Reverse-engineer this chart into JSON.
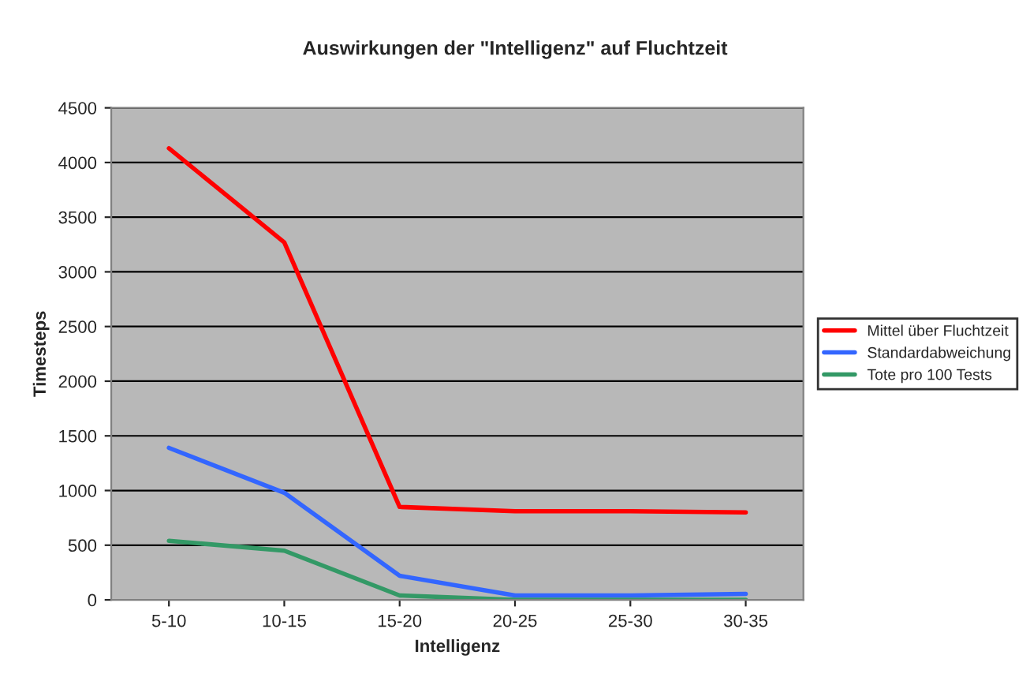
{
  "chart_data": {
    "type": "line",
    "title": "Auswirkungen der \"Intelligenz\" auf Fluchtzeit",
    "xlabel": "Intelligenz",
    "ylabel": "Timesteps",
    "categories": [
      "5-10",
      "10-15",
      "15-20",
      "20-25",
      "25-30",
      "30-35"
    ],
    "series": [
      {
        "name": "Mittel über Fluchtzeit",
        "color": "#ff0000",
        "values": [
          4130,
          3270,
          850,
          810,
          810,
          800
        ]
      },
      {
        "name": "Standardabweichung",
        "color": "#3366ff",
        "values": [
          1390,
          980,
          220,
          40,
          40,
          55
        ]
      },
      {
        "name": "Tote pro 100 Tests",
        "color": "#339966",
        "values": [
          540,
          450,
          40,
          0,
          0,
          0
        ]
      }
    ],
    "ylim": [
      0,
      4500
    ],
    "yticks": [
      0,
      500,
      1000,
      1500,
      2000,
      2500,
      3000,
      3500,
      4000,
      4500
    ],
    "grid": "y",
    "legend": "right",
    "marker": "none",
    "line_style": "solid"
  }
}
